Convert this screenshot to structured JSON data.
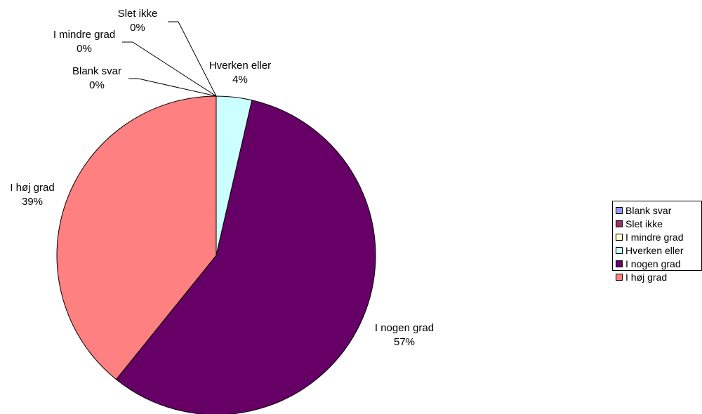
{
  "chart_data": {
    "type": "pie",
    "slices": [
      {
        "label": "Blank svar",
        "value": 0,
        "percent_label": "0%",
        "color": "#9999FF"
      },
      {
        "label": "Slet ikke",
        "value": 0,
        "percent_label": "0%",
        "color": "#993366"
      },
      {
        "label": "I mindre grad",
        "value": 0,
        "percent_label": "0%",
        "color": "#FFFFCC"
      },
      {
        "label": "Hverken eller",
        "value": 3.6,
        "percent_label": "4%",
        "color": "#CCFFFF"
      },
      {
        "label": "I nogen grad",
        "value": 57.2,
        "percent_label": "57%",
        "color": "#660066"
      },
      {
        "label": "I høj grad",
        "value": 39.2,
        "percent_label": "39%",
        "color": "#FF8080"
      }
    ],
    "legend_position": "right"
  }
}
